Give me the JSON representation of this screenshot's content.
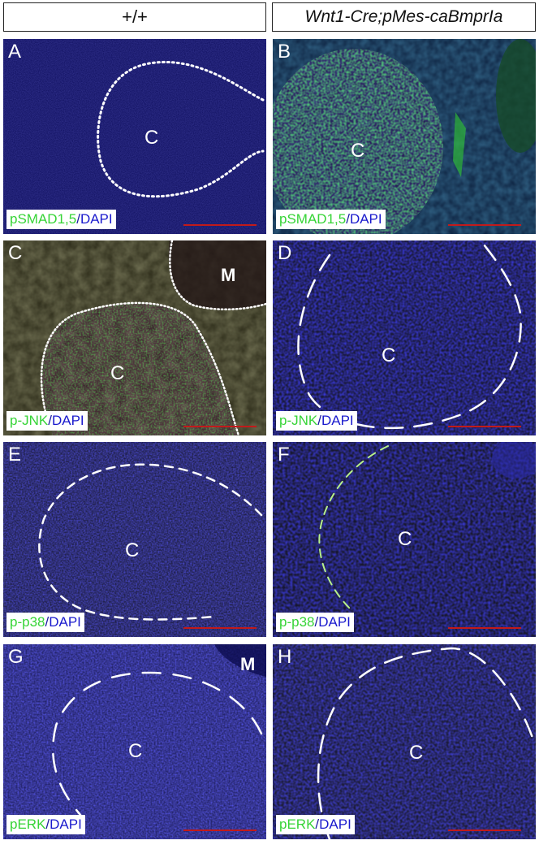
{
  "headers": {
    "left": "+/+",
    "right": "Wnt1-Cre;pMes-caBmprIa"
  },
  "panels": {
    "A": {
      "letter": "A",
      "region": "C",
      "stain_marker": "pSMAD1,5",
      "stain_sep": "/",
      "stain_counter": "DAPI"
    },
    "B": {
      "letter": "B",
      "region": "C",
      "stain_marker": "pSMAD1,5",
      "stain_sep": "/",
      "stain_counter": "DAPI"
    },
    "C": {
      "letter": "C",
      "region": "C",
      "region2": "M",
      "stain_marker": "p-JNK",
      "stain_sep": "/",
      "stain_counter": "DAPI"
    },
    "D": {
      "letter": "D",
      "region": "C",
      "stain_marker": "p-JNK",
      "stain_sep": "/",
      "stain_counter": "DAPI"
    },
    "E": {
      "letter": "E",
      "region": "C",
      "stain_marker": "p-p38",
      "stain_sep": "/",
      "stain_counter": "DAPI"
    },
    "F": {
      "letter": "F",
      "region": "C",
      "stain_marker": "p-p38",
      "stain_sep": "/",
      "stain_counter": "DAPI"
    },
    "G": {
      "letter": "G",
      "region": "C",
      "region2": "M",
      "stain_marker": "pERK",
      "stain_sep": "/",
      "stain_counter": "DAPI"
    },
    "H": {
      "letter": "H",
      "region": "C",
      "stain_marker": "pERK",
      "stain_sep": "/",
      "stain_counter": "DAPI"
    }
  },
  "colors": {
    "dapi_blue": "#1a1a8c",
    "marker_green": "#36d436",
    "scale_bar_red": "#c21a1a"
  }
}
